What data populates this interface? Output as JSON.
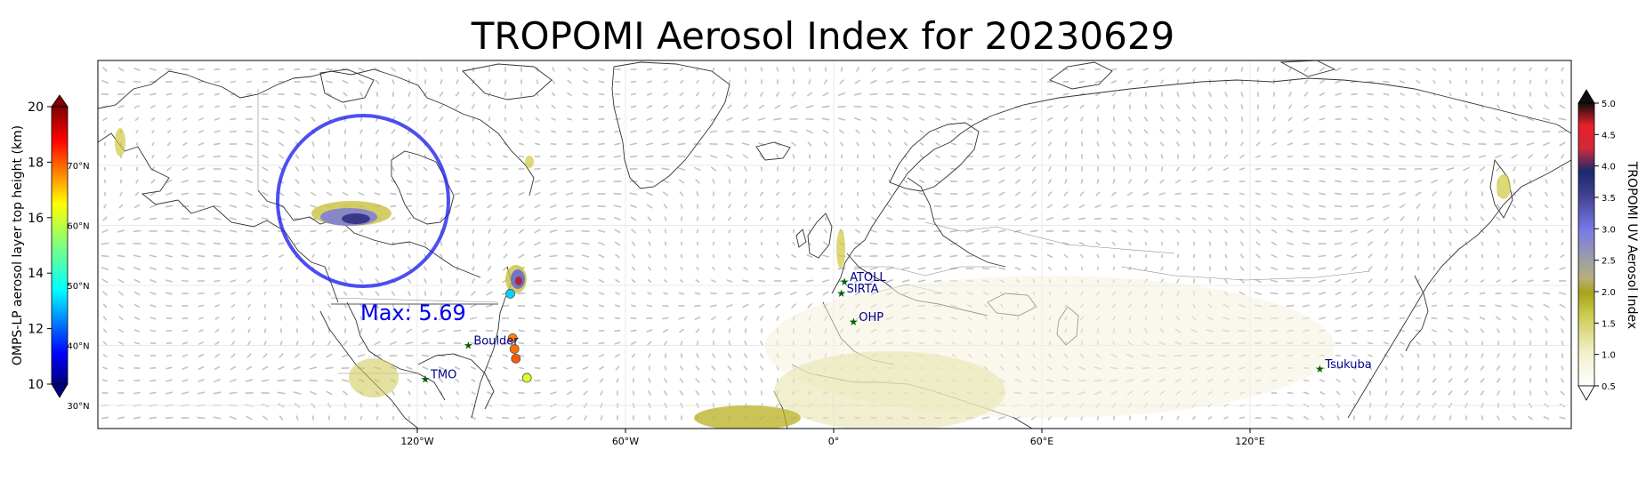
{
  "title": "TROPOMI Aerosol Index for 20230629",
  "map": {
    "lon_ticks": [
      {
        "lon": -120,
        "label": "120°W"
      },
      {
        "lon": -60,
        "label": "60°W"
      },
      {
        "lon": 0,
        "label": "0°"
      },
      {
        "lon": 60,
        "label": "60°E"
      },
      {
        "lon": 120,
        "label": "120°E"
      }
    ],
    "lat_ticks": [
      {
        "lat": 70,
        "label": "70°N"
      },
      {
        "lat": 60,
        "label": "60°N"
      },
      {
        "lat": 50,
        "label": "50°N"
      },
      {
        "lat": 40,
        "label": "40°N"
      },
      {
        "lat": 30,
        "label": "30°N"
      }
    ],
    "max_annotation": "Max: 5.69",
    "max_annotation_color": "#0000ee",
    "plume_circle_color": "#2222ee",
    "stations": [
      {
        "name": "ATOLL",
        "lon": 3.1,
        "lat": 50.6
      },
      {
        "name": "SIRTA",
        "lon": 2.2,
        "lat": 48.7
      },
      {
        "name": "OHP",
        "lon": 5.7,
        "lat": 43.9
      },
      {
        "name": "Boulder",
        "lon": -105.3,
        "lat": 40.0
      },
      {
        "name": "TMO",
        "lon": -117.7,
        "lat": 34.4
      },
      {
        "name": "Tsukuba",
        "lon": 140.1,
        "lat": 36.1
      }
    ],
    "station_marker_color": "#006400",
    "station_label_color": "#00008b",
    "omps_points": [
      {
        "lon": -93.2,
        "lat": 48.6,
        "height_km": 13.0
      },
      {
        "lon": -92.5,
        "lat": 41.2,
        "height_km": 17.6
      },
      {
        "lon": -92.0,
        "lat": 39.4,
        "height_km": 17.8
      },
      {
        "lon": -91.6,
        "lat": 37.8,
        "height_km": 18.0
      },
      {
        "lon": -88.4,
        "lat": 34.6,
        "height_km": 16.1
      }
    ]
  },
  "colorbar_left": {
    "label": "OMPS-LP aerosol layer top height (km)",
    "ticks": [
      "10",
      "12",
      "14",
      "16",
      "18",
      "20"
    ],
    "min": 10,
    "max": 20
  },
  "colorbar_right": {
    "label": "TROPOMI UV Aerosol Index",
    "ticks": [
      "0.5",
      "1.0",
      "1.5",
      "2.0",
      "2.5",
      "3.0",
      "3.5",
      "4.0",
      "4.5",
      "5.0"
    ],
    "min": 0.5,
    "max": 5.0
  }
}
